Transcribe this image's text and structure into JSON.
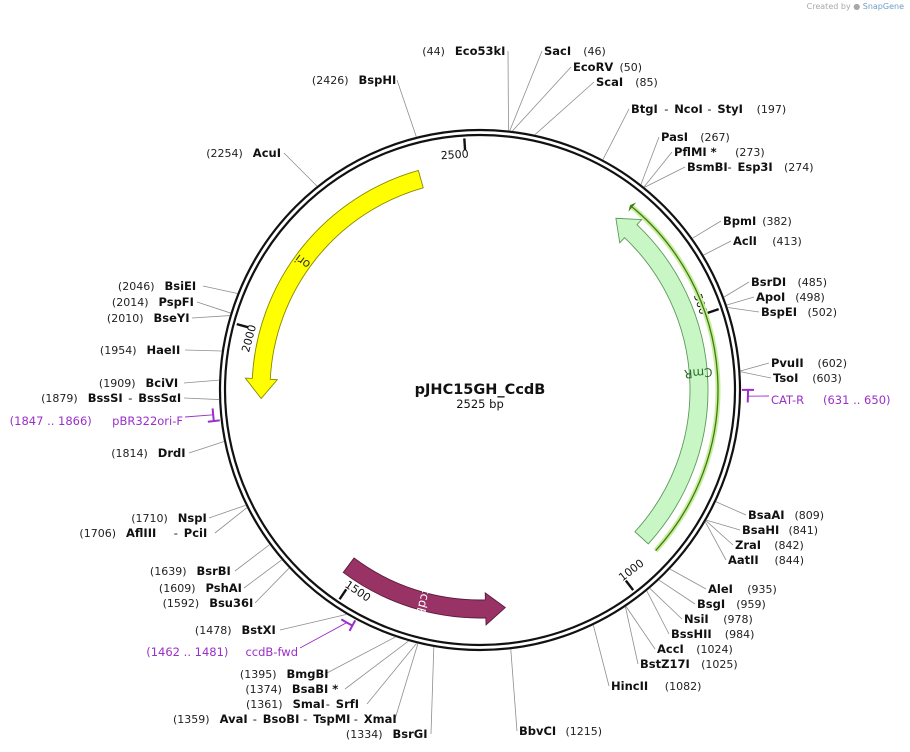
{
  "credit": {
    "prefix": "Created by",
    "brand": "SnapGene"
  },
  "plasmid": {
    "name": "pJHC15GH_CcdB",
    "length_label": "2525 bp",
    "length": 2525
  },
  "ruler_ticks": [
    "500",
    "1000",
    "1500",
    "2000",
    "2500"
  ],
  "features": [
    {
      "name": "CmR",
      "start": 269,
      "end": 929,
      "color": "#c8f7c5",
      "border": "#5a9a5a",
      "direction": "reverse",
      "label_color": "#2a6a2a"
    },
    {
      "name": "ori",
      "start": 1878,
      "end": 2415,
      "color": "#ffff00",
      "border": "#8a8a00",
      "direction": "reverse",
      "label_color": "#333333"
    },
    {
      "name": "ccdB",
      "start": 1216,
      "end": 1521,
      "color": "#993366",
      "border": "#5a1a3a",
      "direction": "reverse",
      "label_color": "#ffffff"
    }
  ],
  "enzymes": [
    {
      "parts": [
        "Eco53kI"
      ],
      "pos": "44"
    },
    {
      "parts": [
        "SacI"
      ],
      "pos": "46"
    },
    {
      "parts": [
        "EcoRV"
      ],
      "pos": "50"
    },
    {
      "parts": [
        "ScaI"
      ],
      "pos": "85"
    },
    {
      "parts": [
        "BtgI",
        "NcoI",
        "StyI"
      ],
      "pos": "197"
    },
    {
      "parts": [
        "PasI"
      ],
      "pos": "267"
    },
    {
      "parts": [
        "PflMI *"
      ],
      "pos": "273"
    },
    {
      "parts": [
        "BsmBI",
        "Esp3I"
      ],
      "pos": "274"
    },
    {
      "parts": [
        "BpmI"
      ],
      "pos": "382"
    },
    {
      "parts": [
        "AclI"
      ],
      "pos": "413"
    },
    {
      "parts": [
        "BsrDI"
      ],
      "pos": "485"
    },
    {
      "parts": [
        "ApoI"
      ],
      "pos": "498"
    },
    {
      "parts": [
        "BspEI"
      ],
      "pos": "502"
    },
    {
      "parts": [
        "PvuII"
      ],
      "pos": "602"
    },
    {
      "parts": [
        "TsoI"
      ],
      "pos": "603"
    },
    {
      "parts": [
        "BsaAI"
      ],
      "pos": "809"
    },
    {
      "parts": [
        "BsaHI"
      ],
      "pos": "841"
    },
    {
      "parts": [
        "ZraI"
      ],
      "pos": "842"
    },
    {
      "parts": [
        "AatII"
      ],
      "pos": "844"
    },
    {
      "parts": [
        "AleI"
      ],
      "pos": "935"
    },
    {
      "parts": [
        "BsgI"
      ],
      "pos": "959"
    },
    {
      "parts": [
        "NsiI"
      ],
      "pos": "978"
    },
    {
      "parts": [
        "BssHII"
      ],
      "pos": "984"
    },
    {
      "parts": [
        "AccI"
      ],
      "pos": "1024"
    },
    {
      "parts": [
        "BstZ17I"
      ],
      "pos": "1025"
    },
    {
      "parts": [
        "HincII"
      ],
      "pos": "1082"
    },
    {
      "parts": [
        "BbvCI"
      ],
      "pos": "1215"
    },
    {
      "parts": [
        "BsrGI"
      ],
      "pos": "1334"
    },
    {
      "parts": [
        "AvaI",
        "BsoBI",
        "TspMI",
        "XmaI"
      ],
      "pos": "1359"
    },
    {
      "parts": [
        "SmaI",
        "SrfI"
      ],
      "pos": "1361"
    },
    {
      "parts": [
        "BsaBI *"
      ],
      "pos": "1374"
    },
    {
      "parts": [
        "BmgBI"
      ],
      "pos": "1395"
    },
    {
      "parts": [
        "BstXI"
      ],
      "pos": "1478"
    },
    {
      "parts": [
        "Bsu36I"
      ],
      "pos": "1592"
    },
    {
      "parts": [
        "PshAI"
      ],
      "pos": "1609"
    },
    {
      "parts": [
        "BsrBI"
      ],
      "pos": "1639"
    },
    {
      "parts": [
        "AflIII",
        "PciI"
      ],
      "pos": "1706"
    },
    {
      "parts": [
        "NspI"
      ],
      "pos": "1710"
    },
    {
      "parts": [
        "DrdI"
      ],
      "pos": "1814"
    },
    {
      "parts": [
        "BssSI",
        "BssSαI"
      ],
      "pos": "1879"
    },
    {
      "parts": [
        "BciVI"
      ],
      "pos": "1909"
    },
    {
      "parts": [
        "HaeII"
      ],
      "pos": "1954"
    },
    {
      "parts": [
        "BseYI"
      ],
      "pos": "2010"
    },
    {
      "parts": [
        "PspFI"
      ],
      "pos": "2014"
    },
    {
      "parts": [
        "BsiEI"
      ],
      "pos": "2046"
    },
    {
      "parts": [
        "AcuI"
      ],
      "pos": "2254"
    },
    {
      "parts": [
        "BspHI"
      ],
      "pos": "2426"
    }
  ],
  "primers": [
    {
      "name": "CAT-R",
      "range": "(631 .. 650)",
      "start": 631,
      "end": 650
    },
    {
      "name": "pBR322ori-F",
      "range": "(1847 .. 1866)",
      "start": 1847,
      "end": 1866
    },
    {
      "name": "ccdB-fwd",
      "range": "(1462 .. 1481)",
      "start": 1462,
      "end": 1481
    }
  ]
}
